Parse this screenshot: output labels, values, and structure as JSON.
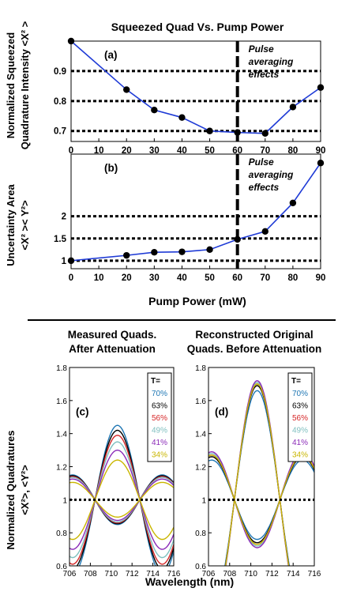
{
  "colors": {
    "line_blue": "#1f3bd6",
    "marker": "#000000",
    "ref_line": "#000000",
    "T_colors": [
      "#1f77b4",
      "#000000",
      "#d62728",
      "#7fbfbf",
      "#8b2bb8",
      "#c9b600"
    ],
    "extra_colors": [
      "#2ca02c",
      "#e08000"
    ]
  },
  "top": {
    "title": "Squeezed Quad Vs. Pump Power",
    "xlabel": "Pump Power (mW)"
  },
  "bottom": {
    "xlabel": "Wavelength (nm)",
    "ylabel_line1": "Normalized Quadratures",
    "ylabel_line2": "<X²>, <Y²>"
  },
  "chart_data": [
    {
      "id": "a",
      "type": "line",
      "panel_label": "(a)",
      "ylabel_line1": "Normalized Squeezed",
      "ylabel_line2": "Quadrature Intensity <X² >",
      "x": [
        0,
        20,
        30,
        40,
        50,
        60,
        70,
        80,
        90
      ],
      "values": [
        1.0,
        0.838,
        0.77,
        0.745,
        0.7,
        0.695,
        0.692,
        0.78,
        0.845
      ],
      "xlim": [
        0,
        90
      ],
      "ylim": [
        0.665,
        1.0
      ],
      "xticks": [
        0,
        10,
        20,
        30,
        40,
        50,
        60,
        70,
        80,
        90
      ],
      "yticks": [
        0.7,
        0.8,
        0.9
      ],
      "ytick_labels": [
        "0.7",
        "0.8",
        "0.9"
      ],
      "hlines": [
        0.7,
        0.8,
        0.9
      ],
      "vline": 60,
      "annotation_line1": "Pulse",
      "annotation_line2": "averaging",
      "annotation_line3": "effects"
    },
    {
      "id": "b",
      "type": "line",
      "panel_label": "(b)",
      "ylabel_line1": "Uncertainty Area",
      "ylabel_line2": "<X² >< Y²>",
      "x": [
        0,
        20,
        30,
        40,
        50,
        60,
        70,
        80,
        90
      ],
      "values": [
        1.0,
        1.12,
        1.19,
        1.2,
        1.25,
        1.48,
        1.66,
        2.3,
        3.2
      ],
      "xlim": [
        0,
        90
      ],
      "ylim": [
        0.82,
        3.4
      ],
      "xticks": [
        0,
        10,
        20,
        30,
        40,
        50,
        60,
        70,
        80,
        90
      ],
      "yticks": [
        1,
        1.5,
        2
      ],
      "ytick_labels": [
        "1",
        "1.5",
        "2"
      ],
      "hlines": [
        1,
        1.5,
        2
      ],
      "vline": 60,
      "annotation_line1": "Pulse",
      "annotation_line2": "averaging",
      "annotation_line3": "effects"
    },
    {
      "id": "c",
      "type": "line",
      "title_line1": "Measured Quads.",
      "title_line2": "After Attenuation",
      "panel_label": "(c)",
      "xlim": [
        706,
        716
      ],
      "ylim": [
        0.6,
        1.8
      ],
      "xticks": [
        706,
        708,
        710,
        712,
        714,
        716
      ],
      "yticks": [
        0.6,
        0.8,
        1,
        1.2,
        1.4,
        1.6,
        1.8
      ],
      "ytick_labels": [
        "0.6",
        "0.8",
        "1",
        "1.2",
        "1.4",
        "1.6",
        "1.8"
      ],
      "hline": 1,
      "center_nm": 710.6,
      "period_nm": 8.6,
      "legend_title": "T=",
      "legend": [
        "70%",
        "63%",
        "56%",
        "49%",
        "41%",
        "34%"
      ],
      "series": [
        {
          "name": "70%",
          "peak": 1.45,
          "trough": 0.85
        },
        {
          "name": "63%",
          "peak": 1.42,
          "trough": 0.855
        },
        {
          "name": "56%",
          "peak": 1.39,
          "trough": 0.86
        },
        {
          "name": "49%",
          "peak": 1.35,
          "trough": 0.865
        },
        {
          "name": "41%",
          "peak": 1.3,
          "trough": 0.875
        },
        {
          "name": "34%",
          "peak": 1.24,
          "trough": 0.895
        }
      ]
    },
    {
      "id": "d",
      "type": "line",
      "title_line1": "Reconstructed Original",
      "title_line2": "Quads. Before Attenuation",
      "panel_label": "(d)",
      "xlim": [
        706,
        716
      ],
      "ylim": [
        0.6,
        1.8
      ],
      "xticks": [
        706,
        708,
        710,
        712,
        714,
        716
      ],
      "yticks": [
        0.6,
        0.8,
        1,
        1.2,
        1.4,
        1.6,
        1.8
      ],
      "ytick_labels": [
        "0.6",
        "0.8",
        "1",
        "1.2",
        "1.4",
        "1.6",
        "1.8"
      ],
      "hline": 1,
      "center_nm": 710.6,
      "period_nm": 8.6,
      "legend_title": "T=",
      "legend": [
        "70%",
        "63%",
        "56%",
        "49%",
        "41%",
        "34%"
      ],
      "series": [
        {
          "name": "70%",
          "peak": 1.66,
          "trough": 0.76
        },
        {
          "name": "63%",
          "peak": 1.69,
          "trough": 0.74
        },
        {
          "name": "56%",
          "peak": 1.7,
          "trough": 0.73
        },
        {
          "name": "49%",
          "peak": 1.71,
          "trough": 0.72
        },
        {
          "name": "41%",
          "peak": 1.72,
          "trough": 0.71
        },
        {
          "name": "34%",
          "peak": 1.7,
          "trough": 0.73
        }
      ]
    }
  ]
}
